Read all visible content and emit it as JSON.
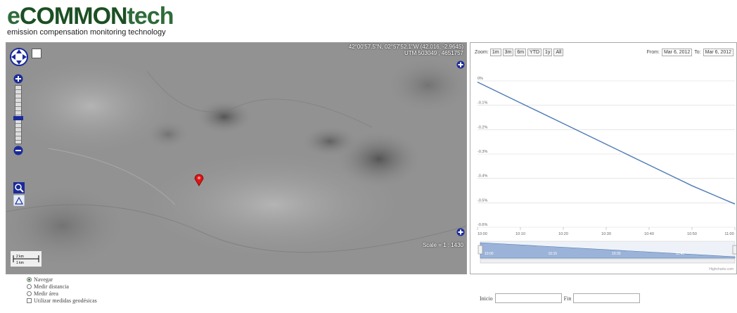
{
  "logo": {
    "brand_e": "e",
    "brand_common": "COMMON",
    "brand_tech": "tech",
    "tagline": "emission compensation monitoring technology"
  },
  "map": {
    "coords_line1": "42°00'57.5\"N, 02°57'52.1\"W (42.016, -2.9645)",
    "coords_line2": "UTM 503049 , 4651757",
    "scale_label": "Scale = 1 : 1430",
    "scale_top": "2 km",
    "scale_bottom": "1 km"
  },
  "chart": {
    "zoom_label": "Zoom:",
    "zoom_buttons": [
      "1m",
      "3m",
      "6m",
      "YTD",
      "1y",
      "All"
    ],
    "from_label": "From:",
    "from_value": "Mar 6, 2012",
    "to_label": "To:",
    "to_value": "Mar 6, 2012",
    "credit": "Highcharts.com"
  },
  "chart_data": {
    "type": "line",
    "x": [
      "10:00",
      "10:10",
      "10:20",
      "10:30",
      "10:40",
      "10:50",
      "11:00"
    ],
    "y_ticks": [
      "0%",
      "-0.1%",
      "-0.2%",
      "-0.3%",
      "-0.4%",
      "-0.5%",
      "-0.6%"
    ],
    "ylim": [
      -0.6,
      0
    ],
    "series": [
      {
        "values": [
          -0.005,
          -0.09,
          -0.175,
          -0.26,
          -0.345,
          -0.43,
          -0.505
        ]
      }
    ],
    "navigator_ticks": [
      "10:00",
      "10:15",
      "10:30",
      "10:45"
    ],
    "line_color": "#4f7bb5"
  },
  "options": {
    "navigate": "Navegar",
    "measure_distance": "Medir distancia",
    "measure_area": "Medir área",
    "geodesic": "Utilizar medidas geodésicas"
  },
  "dates": {
    "start_label": "Inicio",
    "end_label": "Fin"
  }
}
